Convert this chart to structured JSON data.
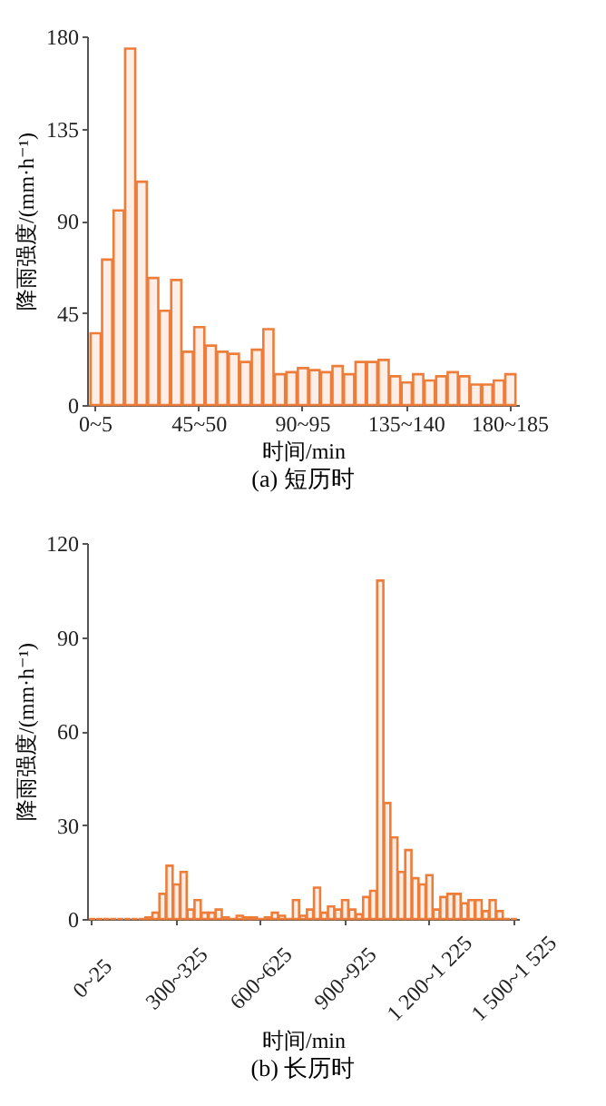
{
  "chart_data": [
    {
      "type": "bar",
      "title": "(a) 短历时",
      "xlabel": "时间/min",
      "ylabel": "降雨强度/(mm·h⁻¹)",
      "categories": [
        "0~5",
        null,
        null,
        null,
        null,
        null,
        null,
        null,
        null,
        "45~50",
        null,
        null,
        null,
        null,
        null,
        null,
        null,
        null,
        "90~95",
        null,
        null,
        null,
        null,
        null,
        null,
        null,
        null,
        "135~140",
        null,
        null,
        null,
        null,
        null,
        null,
        null,
        null,
        "180~185"
      ],
      "values": [
        35,
        71,
        95,
        174,
        109,
        62,
        46,
        61,
        26,
        38,
        29,
        26,
        25,
        21,
        27,
        37,
        15,
        16,
        18,
        17,
        16,
        19,
        15,
        21,
        21,
        22,
        14,
        11,
        15,
        12,
        14,
        16,
        14,
        10,
        10,
        12,
        15
      ],
      "color": "#ee7d3a",
      "ylim": [
        0,
        180
      ],
      "yticks": [
        0,
        45,
        90,
        135,
        180
      ]
    },
    {
      "type": "bar",
      "title": "(b) 长历时",
      "xlabel": "时间/min",
      "ylabel": "降雨强度/(mm·h⁻¹)",
      "categories": [
        "0~25",
        null,
        null,
        null,
        null,
        null,
        null,
        null,
        null,
        null,
        null,
        null,
        "300~325",
        null,
        null,
        null,
        null,
        null,
        null,
        null,
        null,
        null,
        null,
        null,
        "600~625",
        null,
        null,
        null,
        null,
        null,
        null,
        null,
        null,
        null,
        null,
        null,
        "900~925",
        null,
        null,
        null,
        null,
        null,
        null,
        null,
        null,
        null,
        null,
        null,
        "1 200~1 225",
        null,
        null,
        null,
        null,
        null,
        null,
        null,
        null,
        null,
        null,
        null,
        "1 500~1 525"
      ],
      "values": [
        0,
        0,
        0,
        0,
        0,
        0,
        0,
        0,
        0.5,
        2,
        8,
        17,
        11,
        15,
        3,
        6,
        2,
        2,
        3,
        0.5,
        0,
        1,
        0.5,
        0.5,
        0,
        0.5,
        2,
        1,
        0,
        6,
        1,
        3,
        10,
        2,
        4,
        3,
        6,
        3,
        1.5,
        7,
        9,
        108,
        37,
        26,
        15,
        22,
        13,
        11,
        14,
        3,
        7,
        8,
        8,
        5,
        6,
        6,
        2.5,
        6,
        2.5,
        0,
        0
      ],
      "color": "#ee7d3a",
      "ylim": [
        0,
        120
      ],
      "yticks": [
        0,
        30,
        60,
        90,
        120
      ]
    }
  ]
}
